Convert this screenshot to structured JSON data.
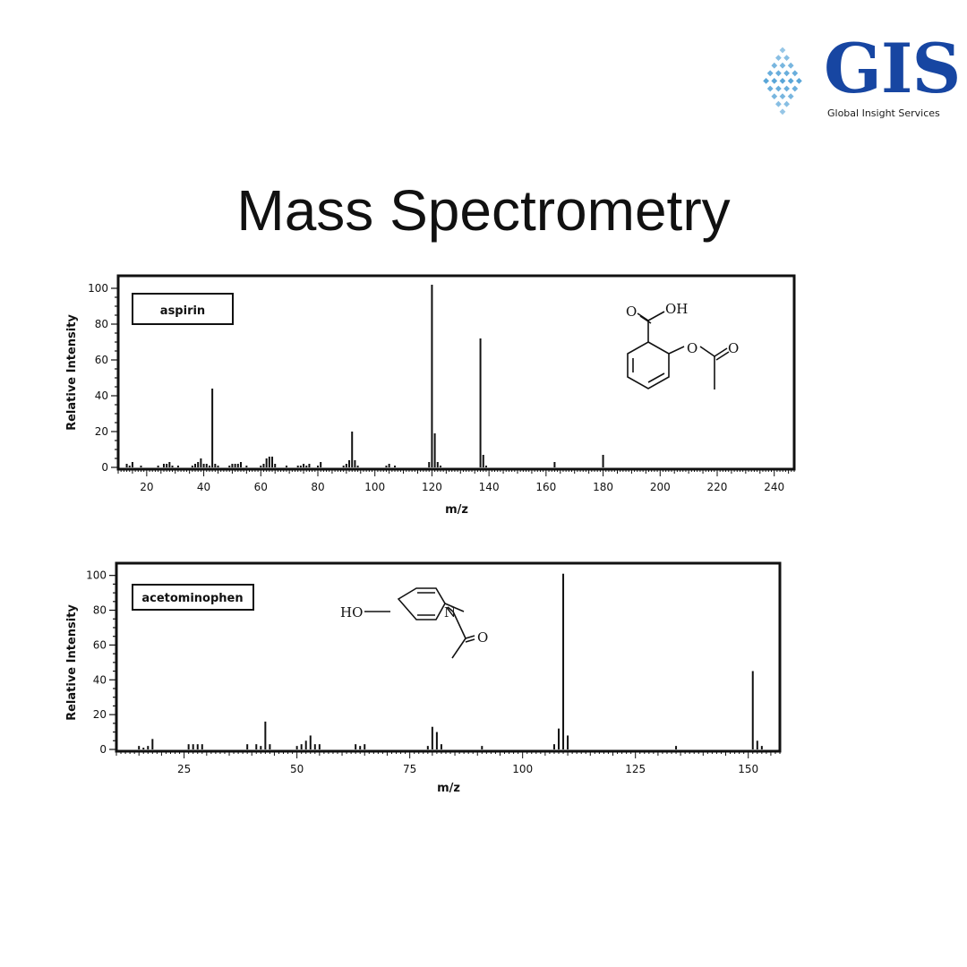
{
  "colors": {
    "brand": "#1746a2",
    "mark": "#5aa6d8",
    "ink": "#111111"
  },
  "logo": {
    "name": "GIS",
    "tagline": "Global Insight Services"
  },
  "title": "Mass Spectrometry",
  "chart_data": [
    {
      "type": "bar",
      "label": "aspirin",
      "xlabel": "m/z",
      "ylabel": "Relative Intensity",
      "xlim": [
        10,
        247
      ],
      "ylim": [
        0,
        106
      ],
      "xticks": [
        20,
        40,
        60,
        80,
        100,
        120,
        140,
        160,
        180,
        200,
        220,
        240
      ],
      "yticks": [
        0,
        20,
        40,
        60,
        80,
        100
      ],
      "grid": false,
      "x": [
        13,
        14,
        15,
        18,
        24,
        26,
        27,
        28,
        29,
        31,
        36,
        37,
        38,
        39,
        40,
        41,
        42,
        43,
        44,
        45,
        49,
        50,
        51,
        52,
        53,
        55,
        60,
        61,
        62,
        63,
        64,
        65,
        69,
        73,
        74,
        75,
        76,
        77,
        80,
        81,
        89,
        90,
        91,
        92,
        93,
        94,
        104,
        105,
        107,
        119,
        120,
        121,
        122,
        123,
        137,
        138,
        139,
        163,
        180
      ],
      "values": [
        2,
        1,
        3,
        1,
        1,
        2,
        2,
        3,
        1,
        1,
        1,
        2,
        3,
        5,
        2,
        2,
        1,
        44,
        2,
        1,
        1,
        2,
        2,
        2,
        3,
        1,
        1,
        2,
        5,
        6,
        6,
        2,
        1,
        1,
        1,
        2,
        1,
        2,
        1,
        3,
        1,
        2,
        4,
        20,
        4,
        1,
        1,
        2,
        1,
        3,
        102,
        19,
        3,
        1,
        72,
        7,
        1,
        3,
        7
      ],
      "molecule": {
        "labels": [
          "O",
          "OH",
          "O",
          "O"
        ]
      }
    },
    {
      "type": "bar",
      "label": "acetominophen",
      "xlabel": "m/z",
      "ylabel": "Relative Intensity",
      "xlim": [
        10,
        157
      ],
      "ylim": [
        0,
        106
      ],
      "xticks": [
        25,
        50,
        75,
        100,
        125,
        150
      ],
      "yticks": [
        0,
        20,
        40,
        60,
        80,
        100
      ],
      "grid": false,
      "x": [
        15,
        16,
        17,
        18,
        26,
        27,
        28,
        29,
        39,
        41,
        42,
        43,
        44,
        50,
        51,
        52,
        53,
        54,
        55,
        63,
        64,
        65,
        79,
        80,
        81,
        82,
        91,
        107,
        108,
        109,
        110,
        134,
        151,
        152,
        153
      ],
      "values": [
        2,
        1,
        2,
        6,
        3,
        3,
        3,
        3,
        3,
        3,
        2,
        16,
        3,
        2,
        3,
        5,
        8,
        3,
        3,
        3,
        2,
        3,
        2,
        13,
        10,
        3,
        2,
        3,
        12,
        101,
        8,
        2,
        45,
        5,
        2
      ],
      "molecule": {
        "labels": [
          "HO",
          "N",
          "O"
        ]
      }
    }
  ]
}
